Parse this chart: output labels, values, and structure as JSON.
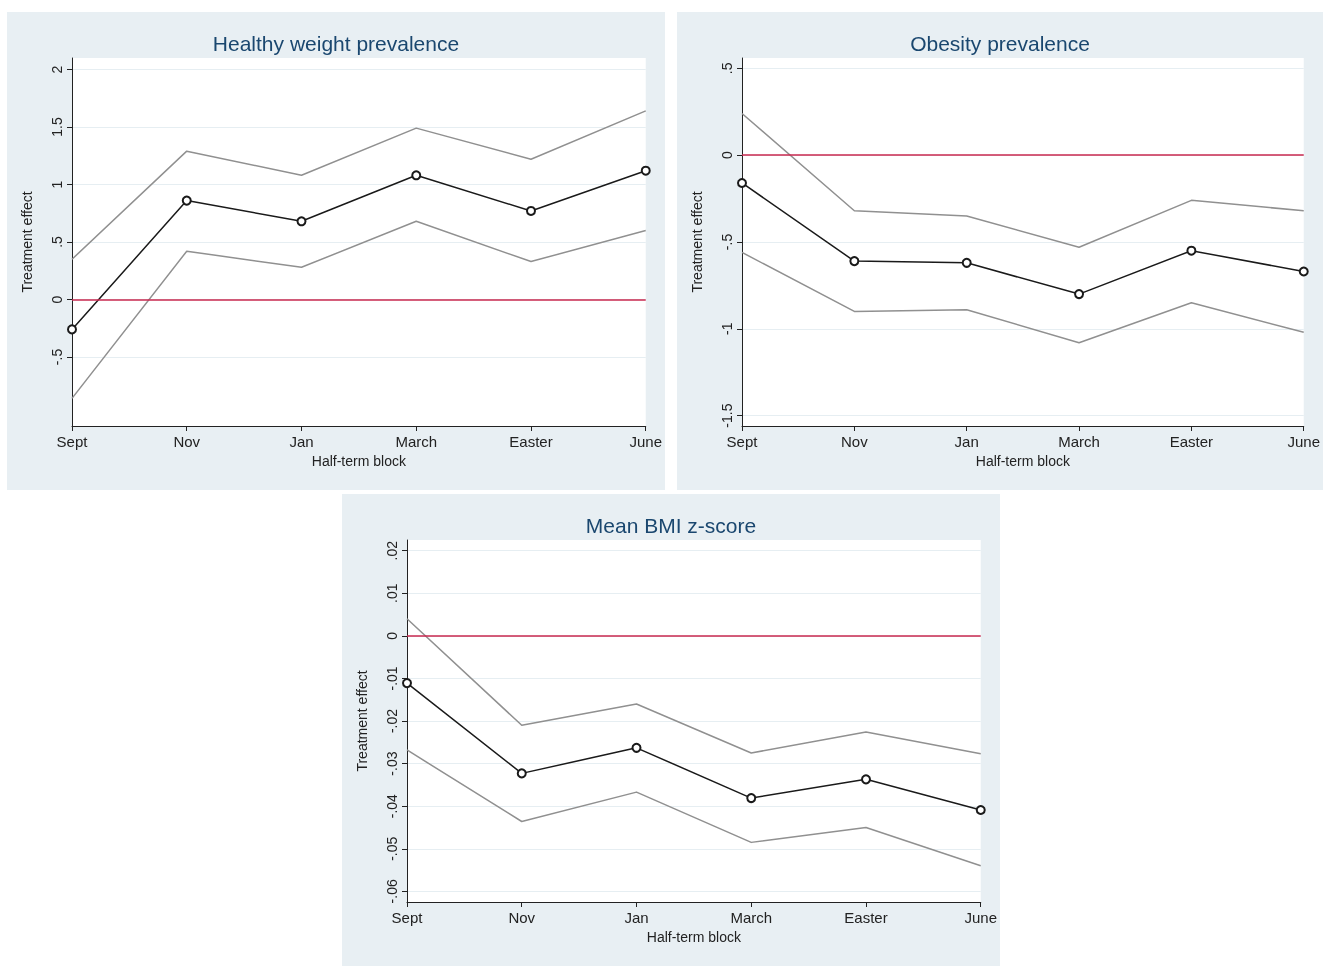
{
  "chart_data": [
    {
      "type": "line",
      "title": "Healthy weight prevalence",
      "xlabel": "Half-term block",
      "ylabel": "Treatment effect",
      "categories": [
        "Sept",
        "Nov",
        "Jan",
        "March",
        "Easter",
        "June"
      ],
      "ylim": [
        -1.1,
        2.1
      ],
      "yticks": [
        {
          "value": -0.5,
          "label": "-.5"
        },
        0,
        {
          "value": 0.5,
          "label": ".5"
        },
        1,
        1.5,
        2
      ],
      "grid": "y",
      "series": [
        {
          "color": "#909090",
          "marker": "none",
          "values": [
            0.35,
            1.29,
            1.08,
            1.49,
            1.22,
            1.64
          ]
        },
        {
          "color": "#909090",
          "marker": "none",
          "values": [
            -0.86,
            0.42,
            0.28,
            0.68,
            0.33,
            0.6
          ]
        },
        {
          "color": "#1a1a1a",
          "marker": "circle",
          "values": [
            -0.26,
            0.86,
            0.68,
            1.08,
            0.77,
            1.12
          ]
        }
      ],
      "ref_lines": [
        {
          "axis": "y",
          "value": 0,
          "color": "#c8294f"
        }
      ]
    },
    {
      "type": "line",
      "title": "Obesity prevalence",
      "xlabel": "Half-term block",
      "ylabel": "Treatment effect",
      "categories": [
        "Sept",
        "Nov",
        "Jan",
        "March",
        "Easter",
        "June"
      ],
      "ylim": [
        -1.56,
        0.56
      ],
      "yticks": [
        {
          "value": -1.5,
          "label": "-1.5"
        },
        -1,
        {
          "value": -0.5,
          "label": "-.5"
        },
        0,
        {
          "value": 0.5,
          "label": ".5"
        }
      ],
      "grid": "y",
      "series": [
        {
          "color": "#909090",
          "marker": "none",
          "values": [
            0.24,
            -0.32,
            -0.35,
            -0.53,
            -0.26,
            -0.32
          ]
        },
        {
          "color": "#909090",
          "marker": "none",
          "values": [
            -0.56,
            -0.9,
            -0.89,
            -1.08,
            -0.85,
            -1.02
          ]
        },
        {
          "color": "#1a1a1a",
          "marker": "circle",
          "values": [
            -0.16,
            -0.61,
            -0.62,
            -0.8,
            -0.55,
            -0.67
          ]
        }
      ],
      "ref_lines": [
        {
          "axis": "y",
          "value": 0,
          "color": "#c8294f"
        }
      ]
    },
    {
      "type": "line",
      "title": "Mean BMI z-score",
      "xlabel": "Half-term block",
      "ylabel": "Treatment effect",
      "categories": [
        "Sept",
        "Nov",
        "Jan",
        "March",
        "Easter",
        "June"
      ],
      "ylim": [
        -0.0625,
        0.0225
      ],
      "yticks": [
        {
          "value": -0.06,
          "label": "-.06"
        },
        {
          "value": -0.05,
          "label": "-.05"
        },
        {
          "value": -0.04,
          "label": "-.04"
        },
        {
          "value": -0.03,
          "label": "-.03"
        },
        {
          "value": -0.02,
          "label": "-.02"
        },
        {
          "value": -0.01,
          "label": "-.01"
        },
        0,
        {
          "value": 0.01,
          "label": ".01"
        },
        {
          "value": 0.02,
          "label": ".02"
        }
      ],
      "grid": "y",
      "series": [
        {
          "color": "#909090",
          "marker": "none",
          "values": [
            0.004,
            -0.021,
            -0.016,
            -0.0275,
            -0.0226,
            -0.0277
          ]
        },
        {
          "color": "#909090",
          "marker": "none",
          "values": [
            -0.0268,
            -0.0436,
            -0.0367,
            -0.0485,
            -0.045,
            -0.054
          ]
        },
        {
          "color": "#1a1a1a",
          "marker": "circle",
          "values": [
            -0.0111,
            -0.0323,
            -0.0263,
            -0.0381,
            -0.0337,
            -0.0409
          ]
        }
      ],
      "ref_lines": [
        {
          "axis": "y",
          "value": 0,
          "color": "#c8294f"
        }
      ]
    }
  ]
}
